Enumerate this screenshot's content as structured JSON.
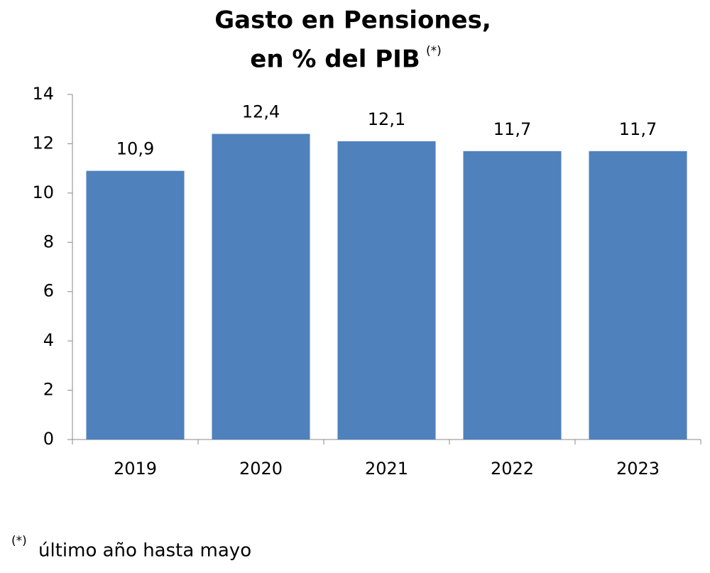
{
  "chart_data": {
    "type": "bar",
    "title": [
      "Gasto en Pensiones,",
      "en % del PIB"
    ],
    "title_note": "(*)",
    "categories": [
      "2019",
      "2020",
      "2021",
      "2022",
      "2023"
    ],
    "values": [
      10.9,
      12.4,
      12.1,
      11.7,
      11.7
    ],
    "value_labels": [
      "10,9",
      "12,4",
      "12,1",
      "11,7",
      "11,7"
    ],
    "color": "#4f81bd",
    "ylim": [
      0,
      14
    ],
    "yticks": [
      0,
      2,
      4,
      6,
      8,
      10,
      12,
      14
    ],
    "grid": false,
    "footnote": {
      "marker": "(*)",
      "text": "último año hasta mayo"
    }
  }
}
